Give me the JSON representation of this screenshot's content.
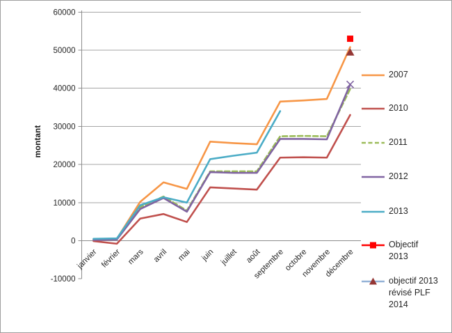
{
  "chart_data": {
    "type": "line",
    "title": "",
    "xlabel": "",
    "ylabel": "montant",
    "ylim": [
      -10000,
      60000
    ],
    "ytick_step": 10000,
    "yticks": [
      60000,
      50000,
      40000,
      30000,
      20000,
      10000,
      0,
      -10000
    ],
    "ytick_labels": [
      "60000",
      "50000",
      "40000",
      "30000",
      "20000",
      "10000",
      "0",
      "-10000"
    ],
    "grid": "horizontal",
    "legend_position": "right",
    "categories": [
      "janvier",
      "février",
      "mars",
      "avril",
      "mai",
      "juin",
      "juillet",
      "août",
      "septembre",
      "octobre",
      "novembre",
      "décembre"
    ],
    "series": [
      {
        "name": "2007",
        "legend_label": "2007",
        "color": "#F79646",
        "dash": "solid",
        "marker": "none",
        "values": [
          300,
          500,
          10200,
          15300,
          13600,
          26000,
          25600,
          25300,
          36500,
          36800,
          37200,
          50800
        ]
      },
      {
        "name": "2010",
        "legend_label": "2010",
        "color": "#C0504D",
        "dash": "solid",
        "marker": "none",
        "values": [
          -100,
          -800,
          5800,
          7000,
          4900,
          14000,
          13700,
          13400,
          21800,
          21900,
          21800,
          33000
        ]
      },
      {
        "name": "2011",
        "legend_label": "2011",
        "color": "#9BBB59",
        "dash": "dashed",
        "marker": "none",
        "values": [
          300,
          400,
          8800,
          11600,
          7900,
          18200,
          18200,
          18200,
          27400,
          27500,
          27400,
          39800
        ]
      },
      {
        "name": "2012",
        "legend_label": "2012",
        "color": "#8064A2",
        "dash": "solid",
        "marker": "x-last",
        "values": [
          200,
          300,
          8300,
          11200,
          7600,
          18000,
          17800,
          17800,
          26700,
          26700,
          26600,
          41000
        ]
      },
      {
        "name": "2013",
        "legend_label": "2013",
        "color": "#4BACC6",
        "dash": "solid",
        "marker": "none",
        "values": [
          500,
          600,
          9300,
          11400,
          10000,
          21400,
          22300,
          23100,
          34000,
          null,
          null,
          null
        ]
      },
      {
        "name": "Objectif 2013",
        "legend_label": "Objectif\n2013",
        "color": "#FF0000",
        "dash": "solid",
        "marker": "square",
        "marker_color": "#FF0000",
        "values": [
          null,
          null,
          null,
          null,
          null,
          null,
          null,
          null,
          null,
          null,
          null,
          53000
        ]
      },
      {
        "name": "objectif 2013 révisé PLF 2014",
        "legend_label": "objectif 2013\nrévisé PLF\n2014",
        "color": "#95B3D7",
        "dash": "solid",
        "marker": "triangle",
        "marker_color": "#953735",
        "values": [
          null,
          null,
          null,
          null,
          null,
          null,
          null,
          null,
          null,
          null,
          null,
          49500
        ]
      }
    ]
  }
}
